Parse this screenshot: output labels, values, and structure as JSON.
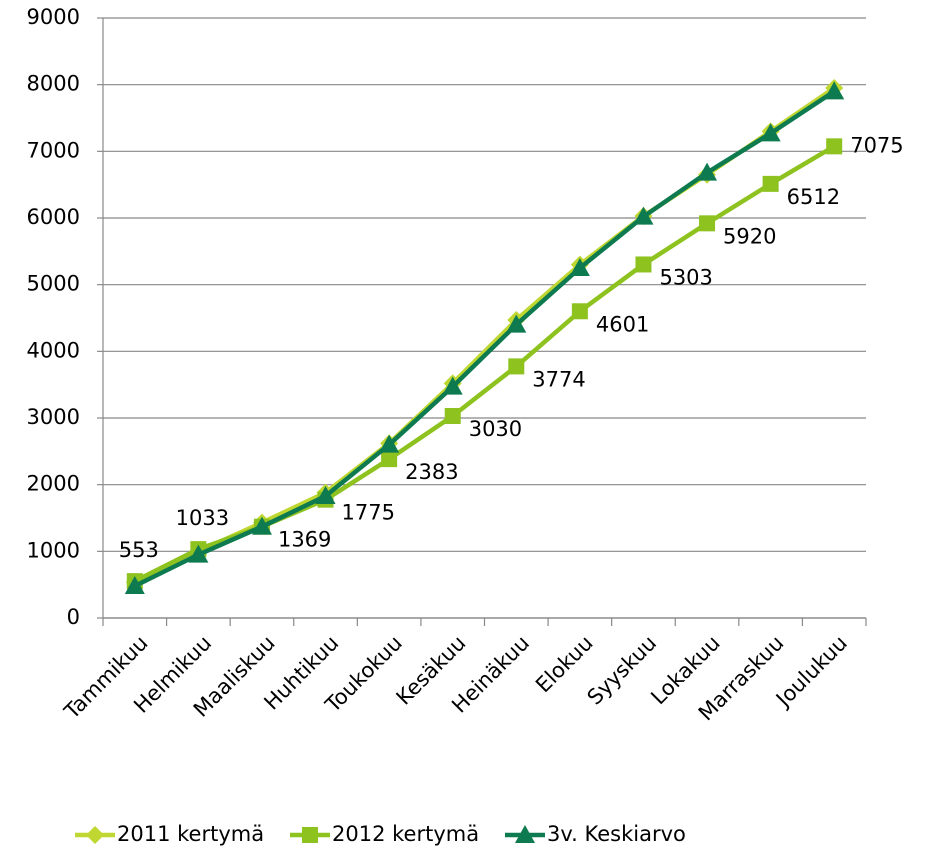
{
  "chart_data": {
    "type": "line",
    "categories": [
      "Tammikuu",
      "Helmikuu",
      "Maaliskuu",
      "Huhtikuu",
      "Toukokuu",
      "Kesäkuu",
      "Heinäkuu",
      "Elokuu",
      "Syyskuu",
      "Lokakuu",
      "Marraskuu",
      "Joulukuu"
    ],
    "series": [
      {
        "name": "2011 kertymä",
        "color": "#bfd730",
        "marker": "diamond",
        "values": [
          540,
          1000,
          1430,
          1880,
          2620,
          3520,
          4470,
          5300,
          6030,
          6650,
          7300,
          7950
        ]
      },
      {
        "name": "2012 kertymä",
        "color": "#8dc21f",
        "marker": "square",
        "values": [
          553,
          1033,
          1369,
          1775,
          2383,
          3030,
          3774,
          4601,
          5303,
          5920,
          6512,
          7075
        ],
        "data_labels": true
      },
      {
        "name": "3v. Keskiarvo",
        "color": "#0e7a4f",
        "marker": "triangle",
        "values": [
          480,
          950,
          1370,
          1830,
          2600,
          3470,
          4400,
          5250,
          6020,
          6680,
          7270,
          7900
        ]
      }
    ],
    "ylim": [
      0,
      9000
    ],
    "yticks": [
      0,
      1000,
      2000,
      3000,
      4000,
      5000,
      6000,
      7000,
      8000,
      9000
    ],
    "grid": true,
    "legend": "bottom"
  }
}
